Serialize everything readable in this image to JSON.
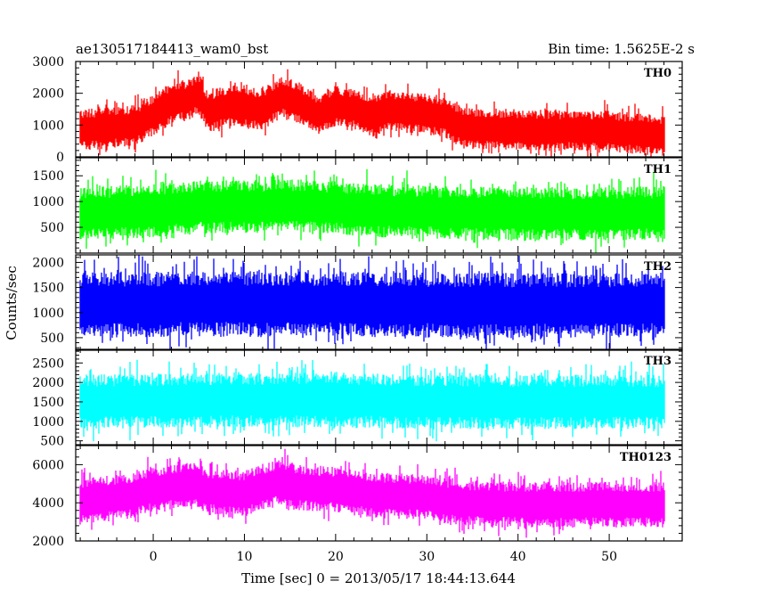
{
  "header": {
    "title": "ae130517184413_wam0_bst",
    "bin_time": "Bin time: 1.5625E-2 s"
  },
  "axes": {
    "xlabel": "Time [sec] 0 = 2013/05/17 18:44:13.644",
    "ylabel": "Counts/sec"
  },
  "chart_data": {
    "type": "line",
    "xlim": [
      -8.5,
      58
    ],
    "x_ticks": [
      0,
      10,
      20,
      30,
      40,
      50
    ],
    "x_range_data": [
      -8,
      56
    ],
    "grid": false,
    "panels": [
      {
        "name": "TH0",
        "color": "#ff0000",
        "ylim": [
          0,
          3000
        ],
        "y_ticks": [
          0,
          1000,
          2000,
          3000
        ],
        "profile": [
          [
            -8,
            850
          ],
          [
            -5,
            900
          ],
          [
            -2,
            1000
          ],
          [
            0,
            1300
          ],
          [
            2,
            1700
          ],
          [
            4,
            1800
          ],
          [
            5,
            2000
          ],
          [
            6,
            1400
          ],
          [
            8,
            1600
          ],
          [
            10,
            1550
          ],
          [
            12,
            1500
          ],
          [
            14,
            1900
          ],
          [
            16,
            1700
          ],
          [
            18,
            1300
          ],
          [
            20,
            1600
          ],
          [
            22,
            1500
          ],
          [
            24,
            1250
          ],
          [
            26,
            1450
          ],
          [
            28,
            1400
          ],
          [
            30,
            1350
          ],
          [
            32,
            1250
          ],
          [
            34,
            900
          ],
          [
            40,
            850
          ],
          [
            50,
            800
          ],
          [
            56,
            650
          ]
        ],
        "spread": 650
      },
      {
        "name": "TH1",
        "color": "#00ff00",
        "ylim": [
          0,
          1850
        ],
        "y_ticks": [
          500,
          1000,
          1500
        ],
        "profile": [
          [
            -8,
            750
          ],
          [
            0,
            820
          ],
          [
            5,
            900
          ],
          [
            10,
            900
          ],
          [
            15,
            920
          ],
          [
            20,
            880
          ],
          [
            25,
            820
          ],
          [
            30,
            800
          ],
          [
            40,
            760
          ],
          [
            50,
            760
          ],
          [
            56,
            780
          ]
        ],
        "spread": 520
      },
      {
        "name": "TH2",
        "color": "#0000ff",
        "ylim": [
          250,
          2150
        ],
        "y_ticks": [
          500,
          1000,
          1500,
          2000
        ],
        "profile": [
          [
            -8,
            1150
          ],
          [
            10,
            1180
          ],
          [
            20,
            1170
          ],
          [
            30,
            1150
          ],
          [
            40,
            1140
          ],
          [
            56,
            1150
          ]
        ],
        "spread": 650
      },
      {
        "name": "TH3",
        "color": "#00ffff",
        "ylim": [
          400,
          2850
        ],
        "y_ticks": [
          500,
          1000,
          1500,
          2000,
          2500
        ],
        "profile": [
          [
            -8,
            1500
          ],
          [
            10,
            1550
          ],
          [
            20,
            1550
          ],
          [
            30,
            1500
          ],
          [
            40,
            1500
          ],
          [
            56,
            1500
          ]
        ],
        "spread": 700
      },
      {
        "name": "TH0123",
        "color": "#ff00ff",
        "ylim": [
          2000,
          7000
        ],
        "y_ticks": [
          2000,
          4000,
          6000
        ],
        "profile": [
          [
            -8,
            4100
          ],
          [
            -3,
            4300
          ],
          [
            0,
            4700
          ],
          [
            4,
            5000
          ],
          [
            6,
            4600
          ],
          [
            10,
            4500
          ],
          [
            14,
            5100
          ],
          [
            16,
            4800
          ],
          [
            20,
            4700
          ],
          [
            24,
            4400
          ],
          [
            30,
            4300
          ],
          [
            34,
            4000
          ],
          [
            40,
            3900
          ],
          [
            50,
            3900
          ],
          [
            56,
            3900
          ]
        ],
        "spread": 1200
      }
    ]
  }
}
